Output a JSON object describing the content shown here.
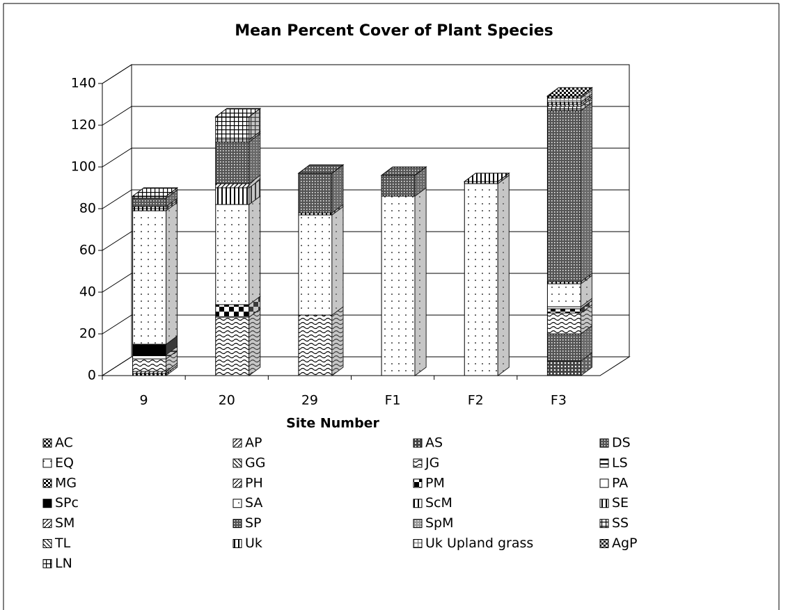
{
  "chart_data": {
    "type": "bar3d_stacked",
    "title": "Mean Percent Cover of Plant Species",
    "x_label": "Site Number",
    "categories": [
      "9",
      "20",
      "29",
      "F1",
      "F2",
      "F3"
    ],
    "ylim": [
      0,
      140
    ],
    "yticks": [
      0,
      20,
      40,
      60,
      80,
      100,
      120,
      140
    ],
    "grid": true,
    "legend": "bottom",
    "series": [
      {
        "name": "AC",
        "color": "#000000",
        "values": [
          1,
          0,
          0,
          0,
          0,
          0
        ]
      },
      {
        "name": "AP",
        "color": "#000000",
        "values": [
          1,
          0,
          0,
          0,
          0,
          0
        ]
      },
      {
        "name": "AS",
        "color": "#000000",
        "values": [
          0,
          0,
          0,
          0,
          0,
          7
        ]
      },
      {
        "name": "DS",
        "color": "#555555",
        "values": [
          0,
          0,
          0,
          0,
          0,
          13
        ]
      },
      {
        "name": "EQ",
        "color": "#000000",
        "values": [
          0,
          0,
          0,
          0,
          0,
          0
        ]
      },
      {
        "name": "GG",
        "color": "#000000",
        "values": [
          0,
          0,
          0,
          0,
          0,
          0
        ]
      },
      {
        "name": "JG",
        "color": "#000000",
        "values": [
          6,
          28,
          29,
          0,
          0,
          10
        ]
      },
      {
        "name": "LS",
        "color": "#000000",
        "values": [
          2,
          0,
          0,
          0,
          0,
          0
        ]
      },
      {
        "name": "MG",
        "color": "#000000",
        "values": [
          0,
          0,
          0,
          0,
          0,
          0
        ]
      },
      {
        "name": "PH",
        "color": "#000000",
        "values": [
          0,
          0,
          0,
          0,
          0,
          0
        ]
      },
      {
        "name": "PM",
        "color": "#000000",
        "values": [
          0,
          6,
          0,
          0,
          0,
          2
        ]
      },
      {
        "name": "PA",
        "color": "#000000",
        "values": [
          0,
          0,
          0,
          0,
          0,
          1
        ]
      },
      {
        "name": "SPc",
        "color": "#000000",
        "values": [
          5,
          0,
          0,
          0,
          0,
          0
        ]
      },
      {
        "name": "SA",
        "color": "#000000",
        "values": [
          64,
          48,
          48,
          86,
          92,
          11
        ]
      },
      {
        "name": "ScM",
        "color": "#000000",
        "values": [
          1,
          0,
          1,
          0,
          0,
          1
        ]
      },
      {
        "name": "SE",
        "color": "#000000",
        "values": [
          1,
          8,
          0,
          0,
          1,
          0
        ]
      },
      {
        "name": "SM",
        "color": "#000000",
        "values": [
          0,
          2,
          0,
          0,
          0,
          0
        ]
      },
      {
        "name": "SP",
        "color": "#555555",
        "values": [
          4,
          20,
          19,
          10,
          0,
          82
        ]
      },
      {
        "name": "SpM",
        "color": "#999999",
        "values": [
          0,
          0,
          0,
          0,
          0,
          0
        ]
      },
      {
        "name": "SS",
        "color": "#000000",
        "values": [
          0,
          1,
          0,
          0,
          0,
          2
        ]
      },
      {
        "name": "TL",
        "color": "#000000",
        "values": [
          0,
          0,
          0,
          0,
          0,
          1
        ]
      },
      {
        "name": "Uk",
        "color": "#000000",
        "values": [
          0,
          0,
          0,
          0,
          0,
          1
        ]
      },
      {
        "name": "Uk Upland grass",
        "color": "#777777",
        "values": [
          0,
          0,
          0,
          0,
          0,
          2
        ]
      },
      {
        "name": "AgP",
        "color": "#000000",
        "values": [
          0,
          0,
          0,
          0,
          0,
          1
        ]
      },
      {
        "name": "LN",
        "color": "#000000",
        "values": [
          1,
          11,
          0,
          0,
          0,
          0
        ]
      }
    ]
  }
}
